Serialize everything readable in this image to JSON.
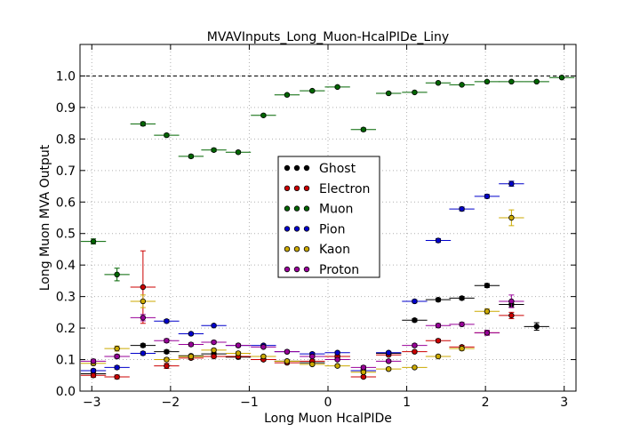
{
  "chart_data": {
    "type": "scatter",
    "title": "MVAVInputs_Long_Muon-HcalPIDe_Liny",
    "xlabel": "Long Muon HcalPIDe",
    "ylabel": "Long Muon MVA Output",
    "xlim": [
      -3.15,
      3.15
    ],
    "ylim": [
      0.0,
      1.1
    ],
    "x_ticks": [
      -3,
      -2,
      -1,
      0,
      1,
      2,
      3
    ],
    "x_tick_labels": [
      "−3",
      "−2",
      "−1",
      "0",
      "1",
      "2",
      "3"
    ],
    "y_ticks": [
      0.0,
      0.1,
      0.2,
      0.3,
      0.4,
      0.5,
      0.6,
      0.7,
      0.8,
      0.9,
      1.0
    ],
    "y_tick_labels": [
      "0.0",
      "0.1",
      "0.2",
      "0.3",
      "0.4",
      "0.5",
      "0.6",
      "0.7",
      "0.8",
      "0.9",
      "1.0"
    ],
    "reference_line": 1.0,
    "grid": true,
    "legend_position": "center",
    "x_bin_half_width": 0.16,
    "series": [
      {
        "name": "Ghost",
        "color": "#000000",
        "x": [
          -2.98,
          -2.68,
          -2.35,
          -2.05,
          -1.74,
          -1.45,
          -1.14,
          -0.82,
          -0.52,
          -0.2,
          0.12,
          0.45,
          0.77,
          1.1,
          1.4,
          1.7,
          2.02,
          2.33,
          2.65
        ],
        "y": [
          0.055,
          0.11,
          0.145,
          0.125,
          0.112,
          0.118,
          0.108,
          0.1,
          0.095,
          0.09,
          0.11,
          0.065,
          0.12,
          0.225,
          0.29,
          0.295,
          0.335,
          0.275,
          0.205
        ],
        "err": [
          0.005,
          0.005,
          0.005,
          0.005,
          0.004,
          0.004,
          0.004,
          0.004,
          0.004,
          0.004,
          0.004,
          0.005,
          0.004,
          0.005,
          0.005,
          0.005,
          0.006,
          0.008,
          0.012
        ]
      },
      {
        "name": "Electron",
        "color": "#cc0000",
        "x": [
          -2.98,
          -2.68,
          -2.35,
          -2.05,
          -1.74,
          -1.45,
          -1.14,
          -0.82,
          -0.52,
          -0.2,
          0.12,
          0.45,
          0.77,
          1.1,
          1.4,
          1.7,
          2.02,
          2.33
        ],
        "y": [
          0.05,
          0.045,
          0.33,
          0.08,
          0.105,
          0.11,
          0.11,
          0.1,
          0.09,
          0.095,
          0.11,
          0.045,
          0.115,
          0.125,
          0.16,
          0.14,
          0.185,
          0.24
        ],
        "err": [
          0.006,
          0.006,
          0.115,
          0.008,
          0.005,
          0.005,
          0.004,
          0.004,
          0.004,
          0.004,
          0.004,
          0.004,
          0.004,
          0.004,
          0.005,
          0.005,
          0.006,
          0.01
        ]
      },
      {
        "name": "Muon",
        "color": "#006600",
        "x": [
          -2.98,
          -2.68,
          -2.35,
          -2.05,
          -1.74,
          -1.45,
          -1.14,
          -0.82,
          -0.52,
          -0.2,
          0.12,
          0.45,
          0.77,
          1.1,
          1.4,
          1.7,
          2.02,
          2.33,
          2.65,
          2.97
        ],
        "y": [
          0.475,
          0.37,
          0.848,
          0.812,
          0.745,
          0.765,
          0.758,
          0.875,
          0.94,
          0.953,
          0.965,
          0.83,
          0.945,
          0.948,
          0.978,
          0.972,
          0.982,
          0.982,
          0.982,
          0.995
        ],
        "err": [
          0.008,
          0.02,
          0.006,
          0.005,
          0.005,
          0.005,
          0.004,
          0.004,
          0.003,
          0.003,
          0.003,
          0.005,
          0.003,
          0.003,
          0.003,
          0.003,
          0.003,
          0.003,
          0.003,
          0.003
        ]
      },
      {
        "name": "Pion",
        "color": "#0000cc",
        "x": [
          -2.98,
          -2.68,
          -2.35,
          -2.05,
          -1.74,
          -1.45,
          -1.14,
          -0.82,
          -0.52,
          -0.2,
          0.12,
          0.45,
          0.77,
          1.1,
          1.4,
          1.7,
          2.02,
          2.33
        ],
        "y": [
          0.065,
          0.075,
          0.12,
          0.222,
          0.182,
          0.208,
          0.145,
          0.145,
          0.125,
          0.118,
          0.122,
          0.065,
          0.122,
          0.285,
          0.478,
          0.578,
          0.618,
          0.658
        ],
        "err": [
          0.005,
          0.005,
          0.005,
          0.005,
          0.004,
          0.004,
          0.004,
          0.004,
          0.004,
          0.004,
          0.004,
          0.005,
          0.004,
          0.005,
          0.006,
          0.006,
          0.006,
          0.008
        ]
      },
      {
        "name": "Kaon",
        "color": "#ccaa00",
        "x": [
          -2.98,
          -2.68,
          -2.35,
          -2.05,
          -1.74,
          -1.45,
          -1.14,
          -0.82,
          -0.52,
          -0.2,
          0.12,
          0.45,
          0.77,
          1.1,
          1.4,
          1.7,
          2.02,
          2.33
        ],
        "y": [
          0.088,
          0.135,
          0.285,
          0.1,
          0.11,
          0.13,
          0.12,
          0.11,
          0.095,
          0.085,
          0.08,
          0.06,
          0.07,
          0.075,
          0.11,
          0.135,
          0.253,
          0.55
        ],
        "err": [
          0.006,
          0.008,
          0.02,
          0.006,
          0.005,
          0.005,
          0.005,
          0.004,
          0.004,
          0.004,
          0.004,
          0.005,
          0.004,
          0.004,
          0.005,
          0.006,
          0.008,
          0.025
        ]
      },
      {
        "name": "Proton",
        "color": "#990099",
        "x": [
          -2.98,
          -2.68,
          -2.35,
          -2.05,
          -1.74,
          -1.45,
          -1.14,
          -0.82,
          -0.52,
          -0.2,
          0.12,
          0.45,
          0.77,
          1.1,
          1.4,
          1.7,
          2.02,
          2.33
        ],
        "y": [
          0.095,
          0.11,
          0.233,
          0.16,
          0.148,
          0.155,
          0.145,
          0.14,
          0.125,
          0.11,
          0.1,
          0.075,
          0.095,
          0.145,
          0.208,
          0.212,
          0.185,
          0.285
        ],
        "err": [
          0.006,
          0.006,
          0.01,
          0.006,
          0.005,
          0.005,
          0.005,
          0.004,
          0.004,
          0.004,
          0.004,
          0.005,
          0.004,
          0.005,
          0.006,
          0.006,
          0.008,
          0.02
        ]
      }
    ]
  }
}
